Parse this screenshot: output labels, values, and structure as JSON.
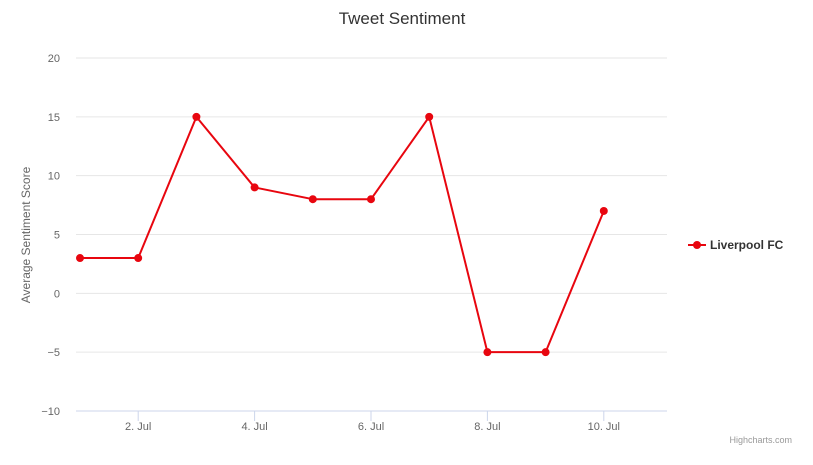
{
  "chart_data": {
    "type": "line",
    "title": "Tweet Sentiment",
    "xlabel": "",
    "ylabel": "Average Sentiment Score",
    "x": [
      "1. Jul",
      "2. Jul",
      "3. Jul",
      "4. Jul",
      "5. Jul",
      "6. Jul",
      "7. Jul",
      "8. Jul",
      "9. Jul",
      "10. Jul"
    ],
    "x_tick_labels": [
      "2. Jul",
      "4. Jul",
      "6. Jul",
      "8. Jul",
      "10. Jul"
    ],
    "series": [
      {
        "name": "Liverpool FC",
        "color": "#e8060f",
        "values": [
          3,
          3,
          15,
          9,
          8,
          8,
          15,
          -5,
          -5,
          7
        ]
      }
    ],
    "ylim": [
      -10,
      20
    ],
    "y_ticks": [
      20,
      15,
      10,
      5,
      0,
      -5,
      -10
    ],
    "grid": true,
    "legend_position": "right"
  },
  "credits": "Highcharts.com"
}
